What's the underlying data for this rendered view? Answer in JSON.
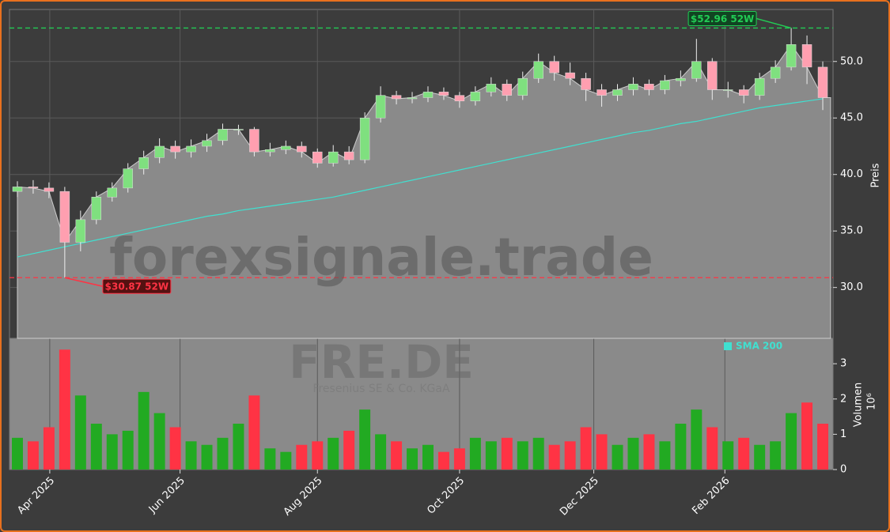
{
  "chart_data": {
    "type": "candlestick",
    "watermark": "forexsignale.trade",
    "symbol": "FRE.DE",
    "company": "Fresenius SE & Co. KGaA",
    "y_label": "Preis",
    "categories": [
      null,
      null,
      null,
      null,
      null,
      null,
      null,
      null,
      null,
      null,
      null,
      null,
      null,
      null,
      null,
      null,
      null,
      null,
      null,
      null,
      null,
      null,
      null,
      null,
      null,
      null,
      null,
      null,
      null,
      null,
      null,
      null,
      null,
      null,
      null,
      null,
      null,
      null,
      null,
      null,
      null,
      null,
      null,
      null,
      null,
      null,
      null,
      null,
      null,
      null,
      null,
      null
    ],
    "open": [
      38.5,
      38.9,
      38.8,
      38.5,
      34.0,
      36.0,
      38.0,
      38.8,
      40.5,
      41.5,
      42.5,
      42.0,
      42.5,
      43.0,
      44.0,
      44.0,
      42.0,
      42.2,
      42.5,
      42.0,
      41.0,
      42.0,
      41.3,
      45.0,
      47.0,
      46.7,
      46.8,
      47.3,
      47.0,
      46.5,
      47.3,
      48.0,
      47.0,
      48.5,
      50.0,
      49.0,
      48.5,
      47.5,
      47.0,
      47.5,
      48.0,
      47.5,
      48.3,
      48.5,
      50.0,
      47.5,
      47.5,
      47.0,
      48.5,
      49.5,
      51.5,
      49.5
    ],
    "high": [
      39.4,
      39.5,
      39.3,
      38.9,
      36.8,
      38.5,
      39.3,
      41.0,
      42.1,
      43.2,
      43.0,
      43.1,
      43.6,
      44.5,
      44.4,
      44.2,
      42.8,
      43.0,
      42.9,
      42.3,
      42.6,
      42.5,
      45.5,
      47.8,
      47.4,
      47.3,
      47.8,
      47.7,
      47.3,
      47.8,
      48.6,
      48.4,
      49.1,
      50.7,
      50.5,
      49.9,
      49.0,
      48.0,
      48.0,
      48.6,
      48.4,
      48.8,
      49.2,
      52.0,
      50.3,
      48.2,
      47.9,
      49.0,
      50.1,
      52.96,
      52.3,
      50.0
    ],
    "low": [
      38.0,
      38.3,
      37.9,
      30.87,
      33.2,
      35.6,
      37.6,
      38.4,
      40.0,
      41.0,
      41.4,
      41.5,
      42.0,
      42.6,
      43.5,
      41.6,
      41.6,
      41.8,
      41.5,
      40.6,
      40.7,
      40.9,
      41.0,
      44.6,
      46.2,
      46.3,
      46.4,
      46.6,
      45.9,
      46.1,
      46.9,
      46.5,
      46.6,
      48.1,
      48.3,
      47.9,
      46.5,
      46.0,
      46.5,
      47.0,
      47.0,
      47.1,
      47.8,
      48.2,
      46.6,
      46.8,
      46.3,
      46.6,
      48.1,
      49.2,
      48.0,
      45.7
    ],
    "close": [
      38.9,
      38.8,
      38.5,
      34.0,
      36.0,
      38.0,
      38.8,
      40.5,
      41.5,
      42.5,
      42.0,
      42.5,
      43.0,
      44.0,
      44.0,
      42.0,
      42.2,
      42.5,
      42.0,
      41.0,
      42.0,
      41.3,
      45.0,
      47.0,
      46.7,
      46.8,
      47.3,
      47.0,
      46.5,
      47.3,
      48.0,
      47.0,
      48.5,
      50.0,
      49.0,
      48.5,
      47.5,
      47.0,
      47.5,
      48.0,
      47.5,
      48.3,
      48.5,
      50.0,
      47.5,
      47.5,
      47.0,
      48.5,
      49.5,
      51.5,
      49.5,
      46.8
    ],
    "up_color": "#22aa22",
    "down_color": "#ff3344",
    "area_color": "#8a8a8a",
    "series": [
      {
        "name": "SMA 200",
        "color": "#40e0d0",
        "values": [
          32.7,
          33.0,
          33.3,
          33.6,
          33.9,
          34.2,
          34.5,
          34.8,
          35.1,
          35.4,
          35.7,
          36.0,
          36.3,
          36.5,
          36.8,
          37.0,
          37.2,
          37.4,
          37.6,
          37.8,
          38.0,
          38.3,
          38.6,
          38.9,
          39.2,
          39.5,
          39.8,
          40.1,
          40.4,
          40.7,
          41.0,
          41.3,
          41.6,
          41.9,
          42.2,
          42.5,
          42.8,
          43.1,
          43.4,
          43.7,
          43.9,
          44.2,
          44.5,
          44.7,
          45.0,
          45.3,
          45.6,
          45.9,
          46.1,
          46.3,
          46.5,
          46.7
        ]
      }
    ],
    "high_52w": {
      "value": 52.96,
      "label": "$52.96 52W",
      "index": 49,
      "color": "#22cc55"
    },
    "low_52w": {
      "value": 30.87,
      "label": "$30.87 52W",
      "index": 3,
      "color": "#ff3344"
    },
    "ylim": [
      25.5,
      54.6
    ],
    "yticks": [
      {
        "value": 30,
        "label": "30.0"
      },
      {
        "value": 35,
        "label": "35.0"
      },
      {
        "value": 40,
        "label": "40.0"
      },
      {
        "value": 45,
        "label": "45.0"
      },
      {
        "value": 50,
        "label": "50.0"
      }
    ],
    "xticks": [
      {
        "value": 2.05,
        "label": "Apr 2025"
      },
      {
        "value": 10.3,
        "label": "Jun 2025"
      },
      {
        "value": 19.0,
        "label": "Aug 2025"
      },
      {
        "value": 28.0,
        "label": "Oct 2025"
      },
      {
        "value": 36.5,
        "label": "Dec 2025"
      },
      {
        "value": 44.8,
        "label": "Feb 2026"
      }
    ],
    "grid": true,
    "volume": {
      "label": "Volumen",
      "unit": "10⁶",
      "values": [
        0.9,
        0.8,
        1.2,
        3.4,
        2.1,
        1.3,
        1.0,
        1.1,
        2.2,
        1.6,
        1.2,
        0.8,
        0.7,
        0.9,
        1.3,
        2.1,
        0.6,
        0.5,
        0.7,
        0.8,
        0.9,
        1.1,
        1.7,
        1.0,
        0.8,
        0.6,
        0.7,
        0.5,
        0.6,
        0.9,
        0.8,
        0.9,
        0.8,
        0.9,
        0.7,
        0.8,
        1.2,
        1.0,
        0.7,
        0.9,
        1.0,
        0.8,
        1.3,
        1.7,
        1.2,
        0.8,
        0.9,
        0.7,
        0.8,
        1.6,
        1.9,
        1.3
      ],
      "ylim": [
        0,
        3.72
      ],
      "yticks": [
        0,
        1,
        2,
        3
      ]
    }
  }
}
